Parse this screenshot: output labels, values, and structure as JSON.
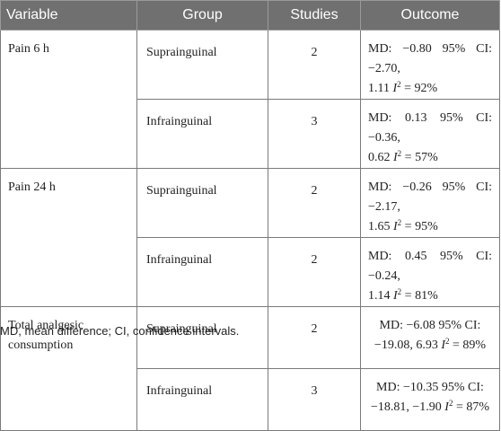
{
  "table": {
    "headers": [
      "Variable",
      "Group",
      "Studies",
      "Outcome"
    ],
    "rows": [
      {
        "variable": "Pain 6 h",
        "group": "Suprainguinal",
        "studies": "2",
        "outcome_line1": "MD: −0.80 95% CI: −2.70,",
        "outcome_line2": "1.11",
        "i2_label": "I",
        "i2_exp": "2",
        "i2_value": " = 92%"
      },
      {
        "variable": "",
        "group": "Infrainguinal",
        "studies": "3",
        "outcome_line1": "MD: 0.13 95% CI: −0.36,",
        "outcome_line2": "0.62",
        "i2_label": "I",
        "i2_exp": "2",
        "i2_value": " = 57%"
      },
      {
        "variable": "Pain 24 h",
        "group": "Suprainguinal",
        "studies": "2",
        "outcome_line1": "MD: −0.26 95% CI: −2.17,",
        "outcome_line2": "1.65",
        "i2_label": "I",
        "i2_exp": "2",
        "i2_value": " = 95%"
      },
      {
        "variable": "",
        "group": "Infrainguinal",
        "studies": "2",
        "outcome_line1": "MD: 0.45 95% CI: −0.24,",
        "outcome_line2": "1.14",
        "i2_label": "I",
        "i2_exp": "2",
        "i2_value": " = 81%"
      },
      {
        "variable": "Total analgesic consumption",
        "group": "Suprainguinal",
        "studies": "2",
        "outcome_line1": "MD: −6.08 95% CI:",
        "outcome_line2": "−19.08, 6.93",
        "i2_label": "I",
        "i2_exp": "2",
        "i2_value": " = 89%"
      },
      {
        "variable": "",
        "group": "Infrainguinal",
        "studies": "3",
        "outcome_line1": "MD: −10.35 95% CI:",
        "outcome_line2": "−18.81, −1.90",
        "i2_label": "I",
        "i2_exp": "2",
        "i2_value": " = 87%"
      }
    ]
  },
  "footnote": "MD, mean difference; CI, confidence intervals."
}
